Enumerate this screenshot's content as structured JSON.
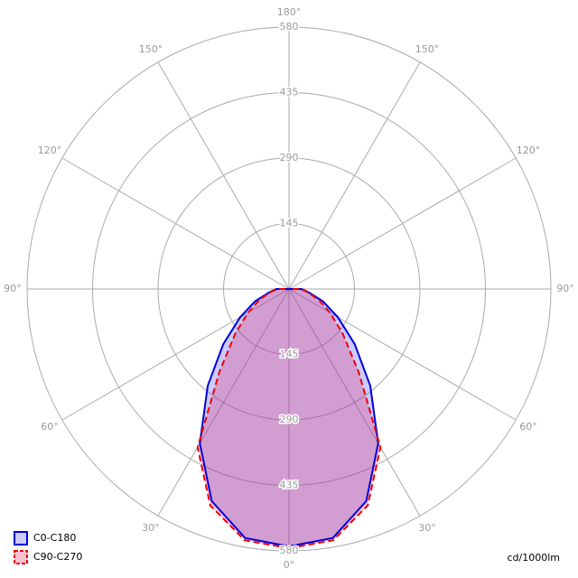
{
  "chart_data": {
    "type": "polar",
    "unit_label": "cd/1000lm",
    "rlim": [
      0,
      580
    ],
    "rticks": [
      145,
      290,
      435,
      580
    ],
    "angle_ticks": [
      {
        "value": 0,
        "label": "0°"
      },
      {
        "value": 30,
        "label": "30°"
      },
      {
        "value": 60,
        "label": "60°"
      },
      {
        "value": 90,
        "label": "90°"
      },
      {
        "value": 120,
        "label": "120°"
      },
      {
        "value": 150,
        "label": "150°"
      },
      {
        "value": 180,
        "label": "180°"
      }
    ],
    "angles": [
      0,
      10,
      20,
      30,
      40,
      50,
      60,
      70,
      80,
      90
    ],
    "series": [
      {
        "name": "C0-C180",
        "color": "#0000dd",
        "fill": "rgba(70,70,255,0.28)",
        "dashed": false,
        "values": [
          570,
          560,
          500,
          395,
          280,
          190,
          125,
          80,
          45,
          28
        ]
      },
      {
        "name": "C90-C270",
        "color": "#ee0000",
        "fill": "rgba(230,40,90,0.28)",
        "dashed": true,
        "values": [
          574,
          565,
          510,
          405,
          240,
          156,
          105,
          70,
          42,
          26
        ]
      }
    ]
  }
}
